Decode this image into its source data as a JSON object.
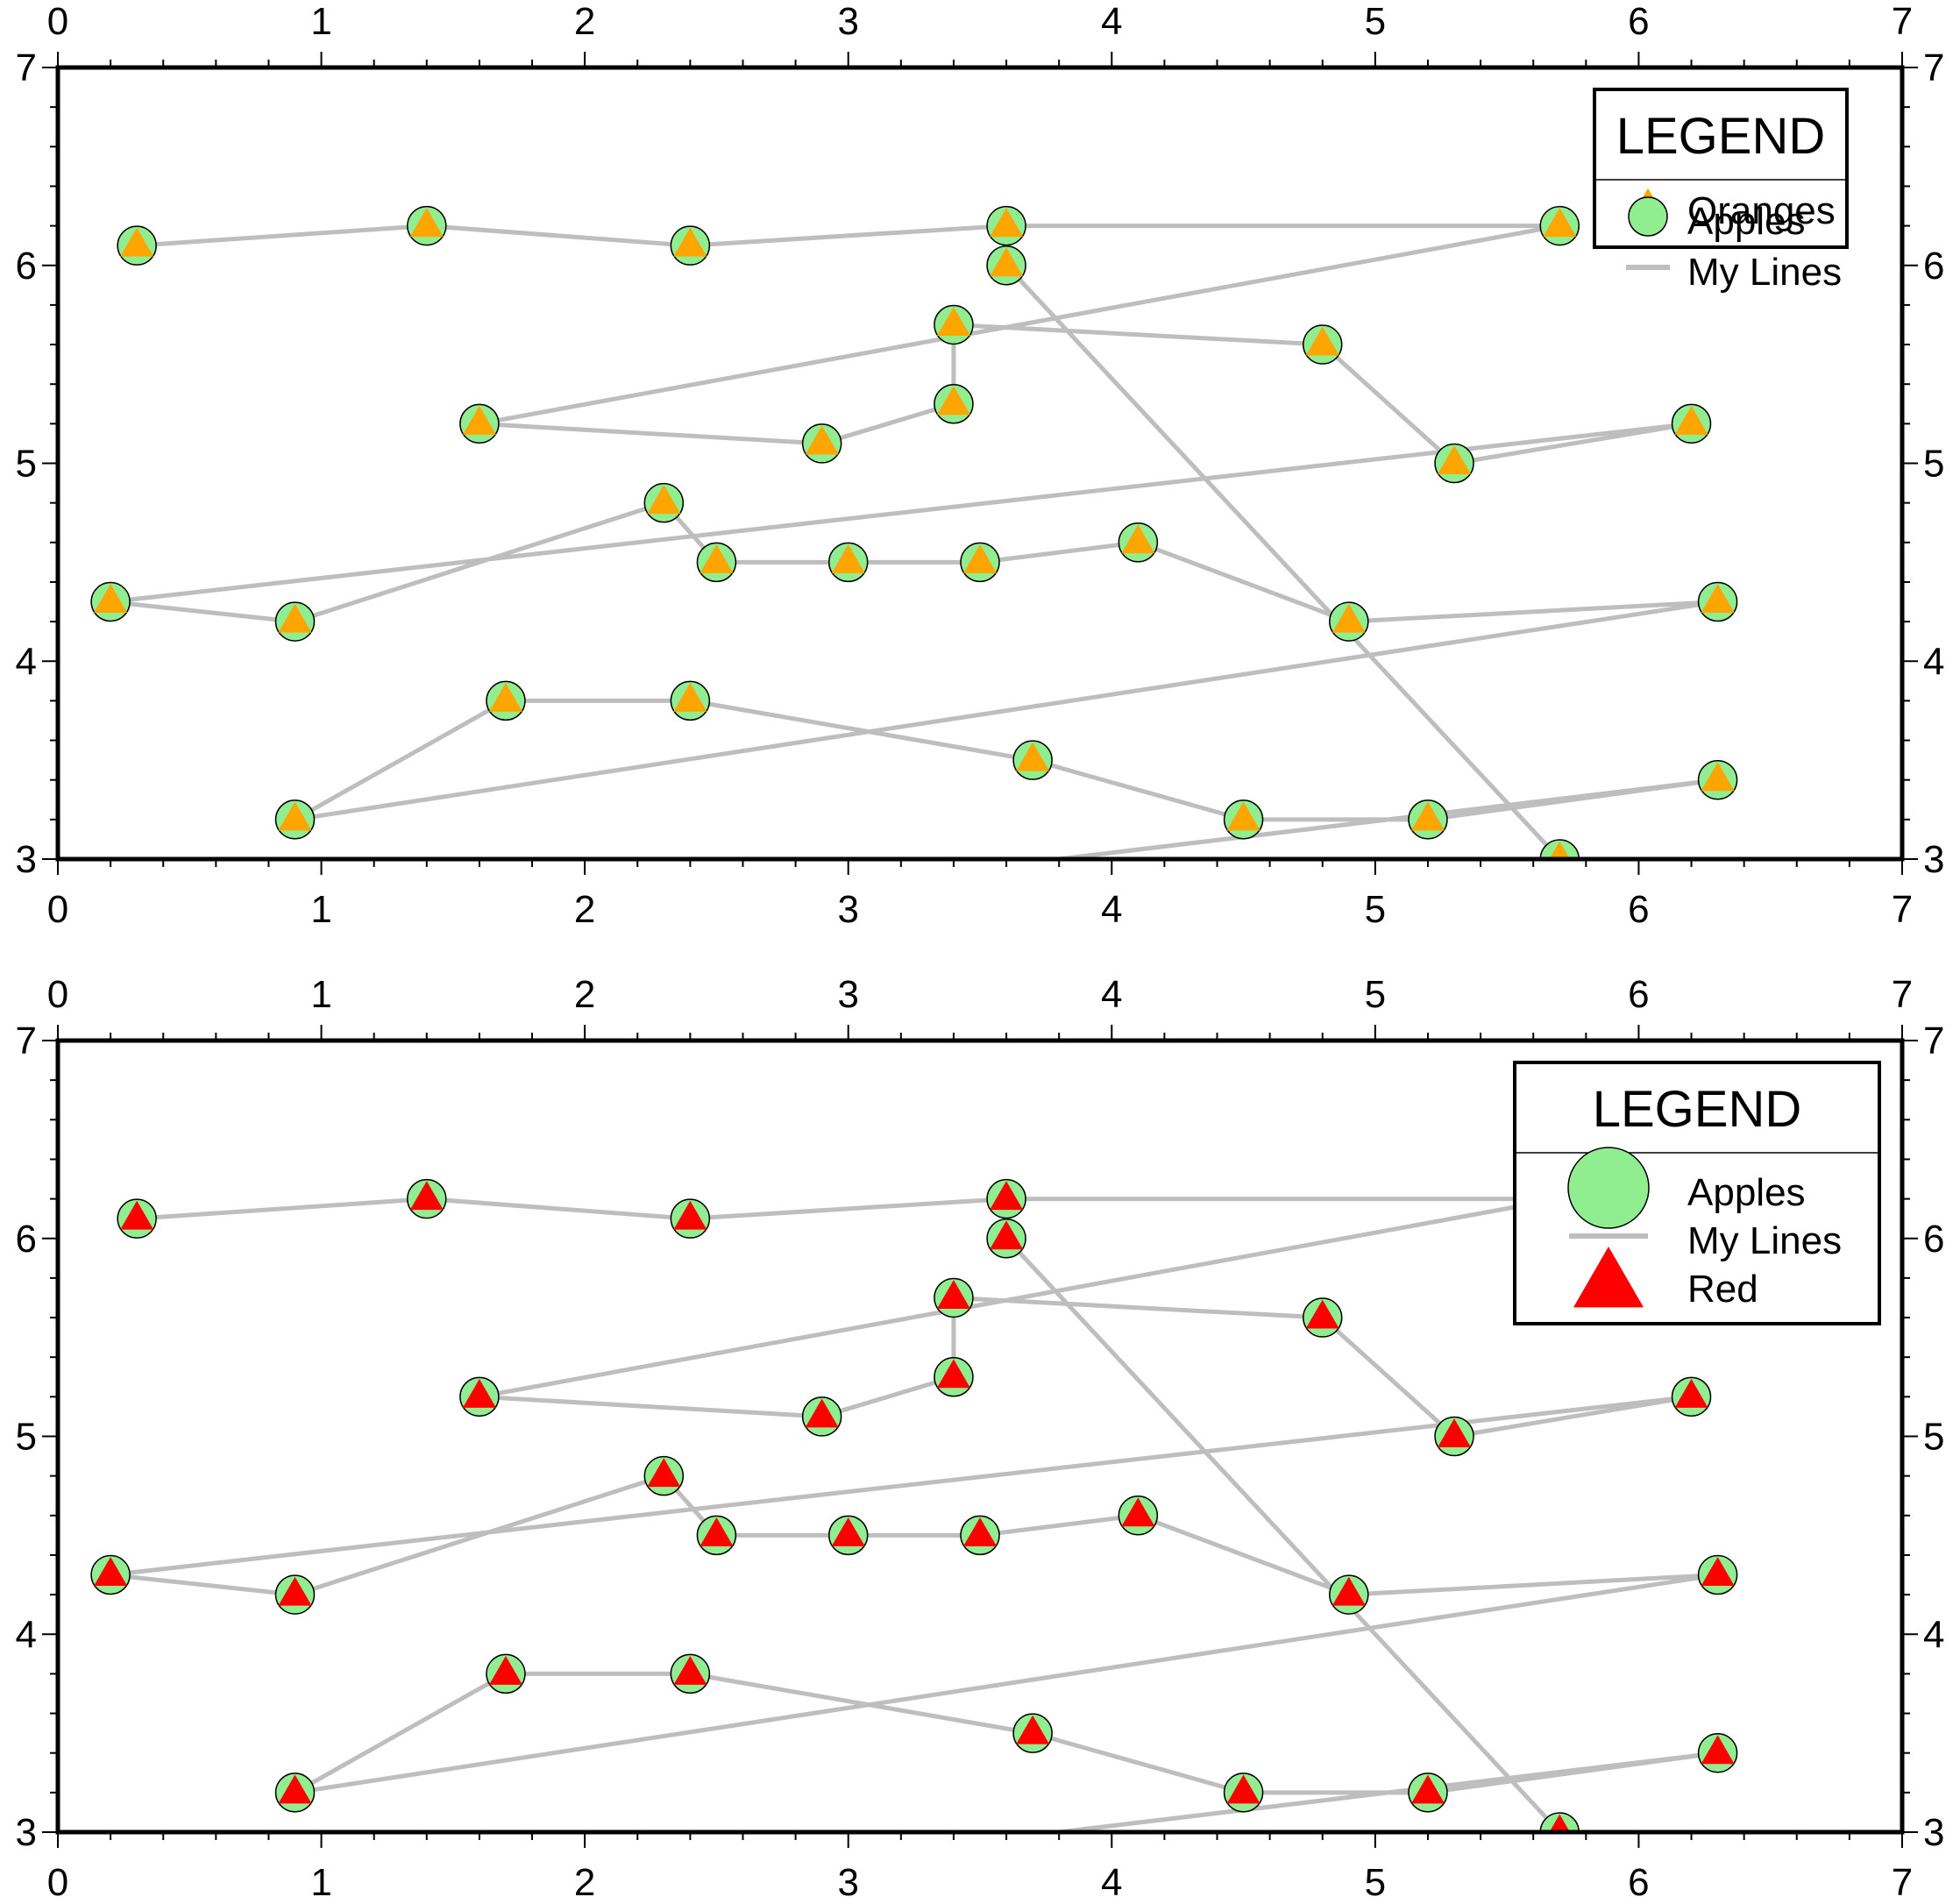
{
  "chart_data": [
    {
      "type": "scatter",
      "title": "",
      "xlabel": "",
      "ylabel": "",
      "xlim": [
        0,
        7
      ],
      "ylim": [
        3,
        7
      ],
      "x_ticks": [
        "0",
        "1",
        "2",
        "3",
        "4",
        "5",
        "6",
        "7"
      ],
      "y_ticks": [
        "3",
        "4",
        "5",
        "6",
        "7"
      ],
      "ticks_on": [
        "bottom",
        "top",
        "left",
        "right"
      ],
      "grid": false,
      "legend": {
        "title": "LEGEND",
        "placement": "top-right",
        "entries": [
          {
            "label": "Oranges",
            "symbol": "triangle",
            "color": "#ffa500"
          },
          {
            "label": "Apples",
            "symbol": "circle",
            "color": "#90ee90"
          },
          {
            "label": "My Lines",
            "symbol": "line",
            "color": "#bebebe"
          }
        ]
      },
      "series": [
        {
          "name": "My Lines",
          "kind": "line",
          "color": "#bebebe",
          "x": [
            0.3,
            1.4,
            2.4,
            3.6,
            5.7,
            1.6,
            2.9,
            3.4,
            3.4,
            4.8,
            5.3,
            6.2,
            0.2,
            0.9,
            2.3,
            2.5,
            3.0,
            3.5,
            4.1,
            4.9,
            6.3,
            0.9,
            1.7,
            2.4,
            3.7,
            4.5,
            5.2,
            6.3,
            3.8
          ],
          "y": [
            6.1,
            6.2,
            6.1,
            6.2,
            6.2,
            5.2,
            5.1,
            5.3,
            5.7,
            5.6,
            5.0,
            5.2,
            4.3,
            4.2,
            4.8,
            4.5,
            4.5,
            4.5,
            4.6,
            4.2,
            4.3,
            3.2,
            3.8,
            3.8,
            3.5,
            3.2,
            3.2,
            3.4,
            3.0
          ]
        },
        {
          "name": "My Lines",
          "kind": "line",
          "color": "#bebebe",
          "x": [
            3.6,
            5.7
          ],
          "y": [
            6.0,
            3.0
          ]
        },
        {
          "name": "Apples",
          "kind": "marker",
          "symbol": "circle",
          "color": "#90ee90",
          "x": [
            0.3,
            1.4,
            2.4,
            3.6,
            3.6,
            5.7,
            3.4,
            4.8,
            1.6,
            2.9,
            3.4,
            5.3,
            6.2,
            2.3,
            0.2,
            0.9,
            2.5,
            3.0,
            3.5,
            4.1,
            4.9,
            6.3,
            1.7,
            2.4,
            3.7,
            0.9,
            4.5,
            5.2,
            6.3,
            5.7
          ],
          "y": [
            6.1,
            6.2,
            6.1,
            6.2,
            6.0,
            6.2,
            5.7,
            5.6,
            5.2,
            5.1,
            5.3,
            5.0,
            5.2,
            4.8,
            4.3,
            4.2,
            4.5,
            4.5,
            4.5,
            4.6,
            4.2,
            4.3,
            3.8,
            3.8,
            3.5,
            3.2,
            3.2,
            3.2,
            3.4,
            3.0
          ]
        },
        {
          "name": "Oranges",
          "kind": "marker",
          "symbol": "triangle",
          "color": "#ffa500",
          "x": [
            0.3,
            1.4,
            2.4,
            3.6,
            3.6,
            5.7,
            3.4,
            4.8,
            1.6,
            2.9,
            3.4,
            5.3,
            6.2,
            2.3,
            0.2,
            0.9,
            2.5,
            3.0,
            3.5,
            4.1,
            4.9,
            6.3,
            1.7,
            2.4,
            3.7,
            0.9,
            4.5,
            5.2,
            6.3,
            5.7
          ],
          "y": [
            6.1,
            6.2,
            6.1,
            6.2,
            6.0,
            6.2,
            5.7,
            5.6,
            5.2,
            5.1,
            5.3,
            5.0,
            5.2,
            4.8,
            4.3,
            4.2,
            4.5,
            4.5,
            4.5,
            4.6,
            4.2,
            4.3,
            3.8,
            3.8,
            3.5,
            3.2,
            3.2,
            3.2,
            3.4,
            3.0
          ]
        }
      ]
    },
    {
      "type": "scatter",
      "title": "",
      "xlabel": "",
      "ylabel": "",
      "xlim": [
        0,
        7
      ],
      "ylim": [
        3,
        7
      ],
      "x_ticks": [
        "0",
        "1",
        "2",
        "3",
        "4",
        "5",
        "6",
        "7"
      ],
      "y_ticks": [
        "3",
        "4",
        "5",
        "6",
        "7"
      ],
      "ticks_on": [
        "bottom",
        "top",
        "left",
        "right"
      ],
      "grid": false,
      "legend": {
        "title": "LEGEND",
        "placement": "top-right",
        "entries": [
          {
            "label": "Apples",
            "symbol": "circle",
            "color": "#90ee90"
          },
          {
            "label": "My Lines",
            "symbol": "line",
            "color": "#bebebe"
          },
          {
            "label": "Red",
            "symbol": "triangle",
            "color": "#ff0000"
          }
        ]
      },
      "series": [
        {
          "name": "My Lines",
          "kind": "line",
          "color": "#bebebe",
          "x": [
            0.3,
            1.4,
            2.4,
            3.6,
            5.7,
            1.6,
            2.9,
            3.4,
            3.4,
            4.8,
            5.3,
            6.2,
            0.2,
            0.9,
            2.3,
            2.5,
            3.0,
            3.5,
            4.1,
            4.9,
            6.3,
            0.9,
            1.7,
            2.4,
            3.7,
            4.5,
            5.2,
            6.3,
            3.8
          ],
          "y": [
            6.1,
            6.2,
            6.1,
            6.2,
            6.2,
            5.2,
            5.1,
            5.3,
            5.7,
            5.6,
            5.0,
            5.2,
            4.3,
            4.2,
            4.8,
            4.5,
            4.5,
            4.5,
            4.6,
            4.2,
            4.3,
            3.2,
            3.8,
            3.8,
            3.5,
            3.2,
            3.2,
            3.4,
            3.0
          ]
        },
        {
          "name": "My Lines",
          "kind": "line",
          "color": "#bebebe",
          "x": [
            3.6,
            5.7
          ],
          "y": [
            6.0,
            3.0
          ]
        },
        {
          "name": "Apples",
          "kind": "marker",
          "symbol": "circle",
          "color": "#90ee90",
          "x": [
            0.3,
            1.4,
            2.4,
            3.6,
            3.6,
            5.7,
            3.4,
            4.8,
            1.6,
            2.9,
            3.4,
            5.3,
            6.2,
            2.3,
            0.2,
            0.9,
            2.5,
            3.0,
            3.5,
            4.1,
            4.9,
            6.3,
            1.7,
            2.4,
            3.7,
            0.9,
            4.5,
            5.2,
            6.3,
            5.7
          ],
          "y": [
            6.1,
            6.2,
            6.1,
            6.2,
            6.0,
            6.2,
            5.7,
            5.6,
            5.2,
            5.1,
            5.3,
            5.0,
            5.2,
            4.8,
            4.3,
            4.2,
            4.5,
            4.5,
            4.5,
            4.6,
            4.2,
            4.3,
            3.8,
            3.8,
            3.5,
            3.2,
            3.2,
            3.2,
            3.4,
            3.0
          ]
        },
        {
          "name": "Red",
          "kind": "marker",
          "symbol": "triangle",
          "color": "#ff0000",
          "x": [
            0.3,
            1.4,
            2.4,
            3.6,
            3.6,
            5.7,
            3.4,
            4.8,
            1.6,
            2.9,
            3.4,
            5.3,
            6.2,
            2.3,
            0.2,
            0.9,
            2.5,
            3.0,
            3.5,
            4.1,
            4.9,
            6.3,
            1.7,
            2.4,
            3.7,
            0.9,
            4.5,
            5.2,
            6.3,
            5.7
          ],
          "y": [
            6.1,
            6.2,
            6.1,
            6.2,
            6.0,
            6.2,
            5.7,
            5.6,
            5.2,
            5.1,
            5.3,
            5.0,
            5.2,
            4.8,
            4.3,
            4.2,
            4.5,
            4.5,
            4.5,
            4.6,
            4.2,
            4.3,
            3.8,
            3.8,
            3.5,
            3.2,
            3.2,
            3.2,
            3.4,
            3.0
          ]
        }
      ]
    }
  ]
}
